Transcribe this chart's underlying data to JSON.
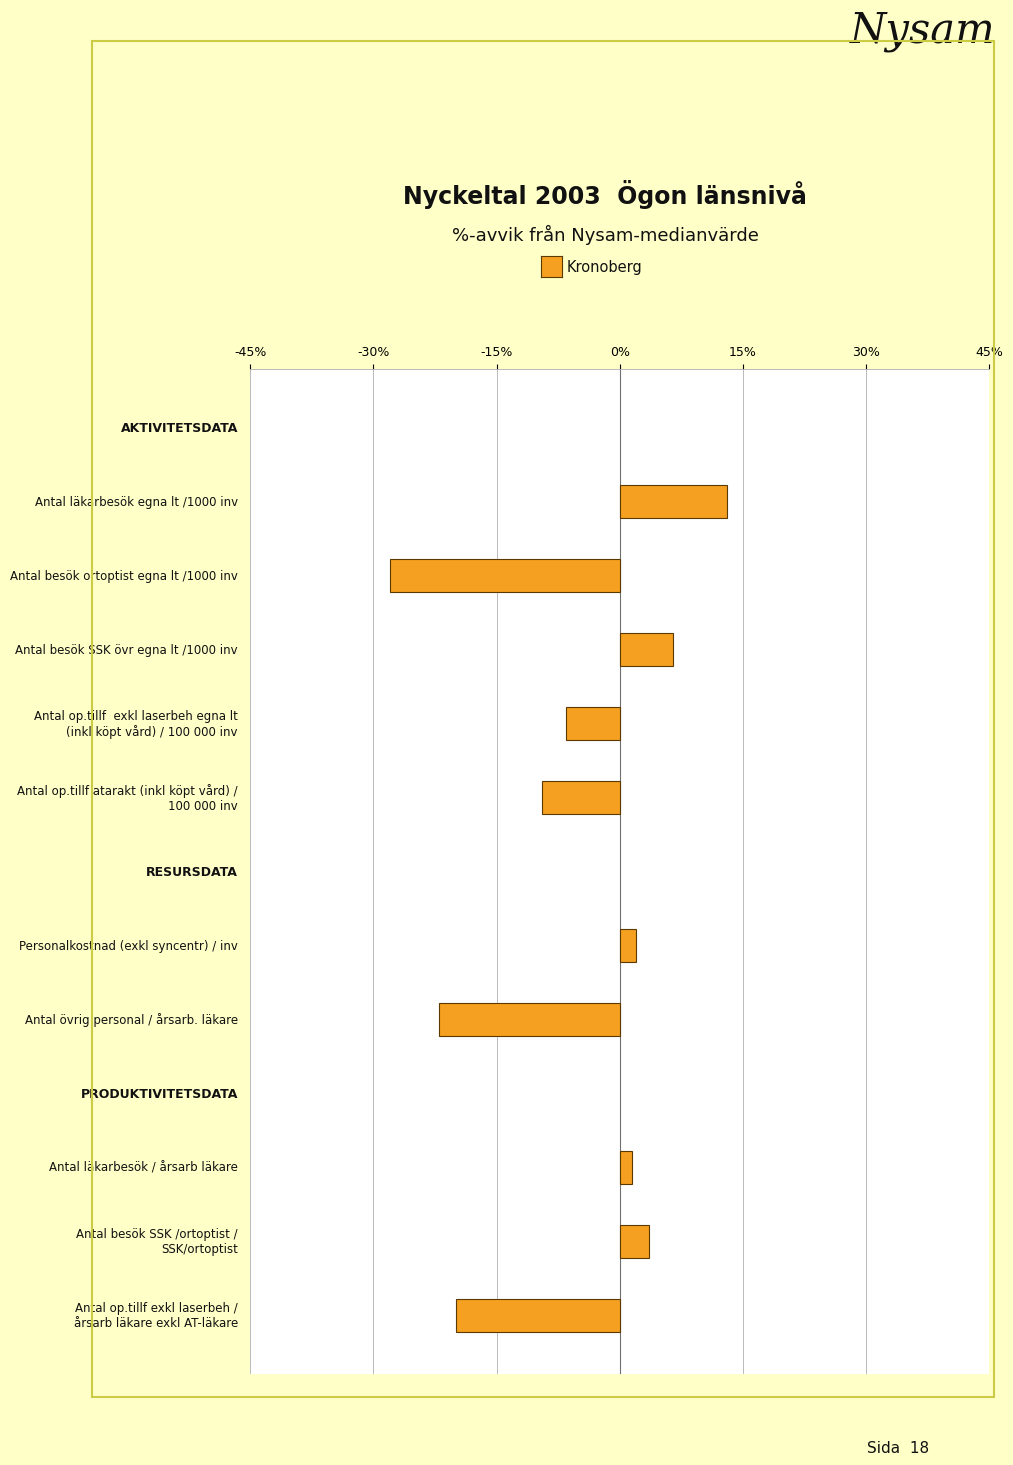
{
  "title_line1": "Nyckeltal 2003  Ögon länsnivå",
  "title_line2": "%-avvik från Nysam-medianvärde",
  "legend_label": "Kronoberg",
  "nysam_logo": "Nysam",
  "page_label": "Sida  18",
  "background_color": "#ffffc8",
  "plot_bg_color": "#ffffff",
  "bar_color": "#f5a020",
  "bar_edge_color": "#5a3a00",
  "xlim": [
    -45,
    45
  ],
  "xticks": [
    -45,
    -30,
    -15,
    0,
    15,
    30,
    45
  ],
  "xtick_labels": [
    "-45%",
    "-30%",
    "-15%",
    "0%",
    "15%",
    "30%",
    "45%"
  ],
  "categories": [
    "AKTIVITETSDATA",
    "Antal läkarbesök egna lt /1000 inv",
    "Antal besök ortoptist egna lt /1000 inv",
    "Antal besök SSK övr egna lt /1000 inv",
    "Antal op.tillf  exkl laserbeh egna lt\n(inkl köpt vård) / 100 000 inv",
    "Antal op.tillf atarakt (inkl köpt vård) /\n100 000 inv",
    "RESURSDATA",
    "Personalkostnad (exkl syncentr) / inv",
    "Antal övrig personal / årsarb. läkare",
    "PRODUKTIVITETSDATA",
    "Antal läkarbesök / årsarb läkare",
    "Antal besök SSK /ortoptist /\nSSK/ortoptist",
    "Antal op.tillf exkl laserbeh /\nårsarb läkare exkl AT-läkare"
  ],
  "values": [
    null,
    13.0,
    -28.0,
    6.5,
    -6.5,
    -9.5,
    null,
    2.0,
    -22.0,
    null,
    1.5,
    3.5,
    -20.0
  ],
  "is_header": [
    true,
    false,
    false,
    false,
    false,
    false,
    true,
    false,
    false,
    true,
    false,
    false,
    false
  ],
  "header_fontsize": 9,
  "label_fontsize": 8.5,
  "title_fontsize1": 17,
  "title_fontsize2": 13
}
